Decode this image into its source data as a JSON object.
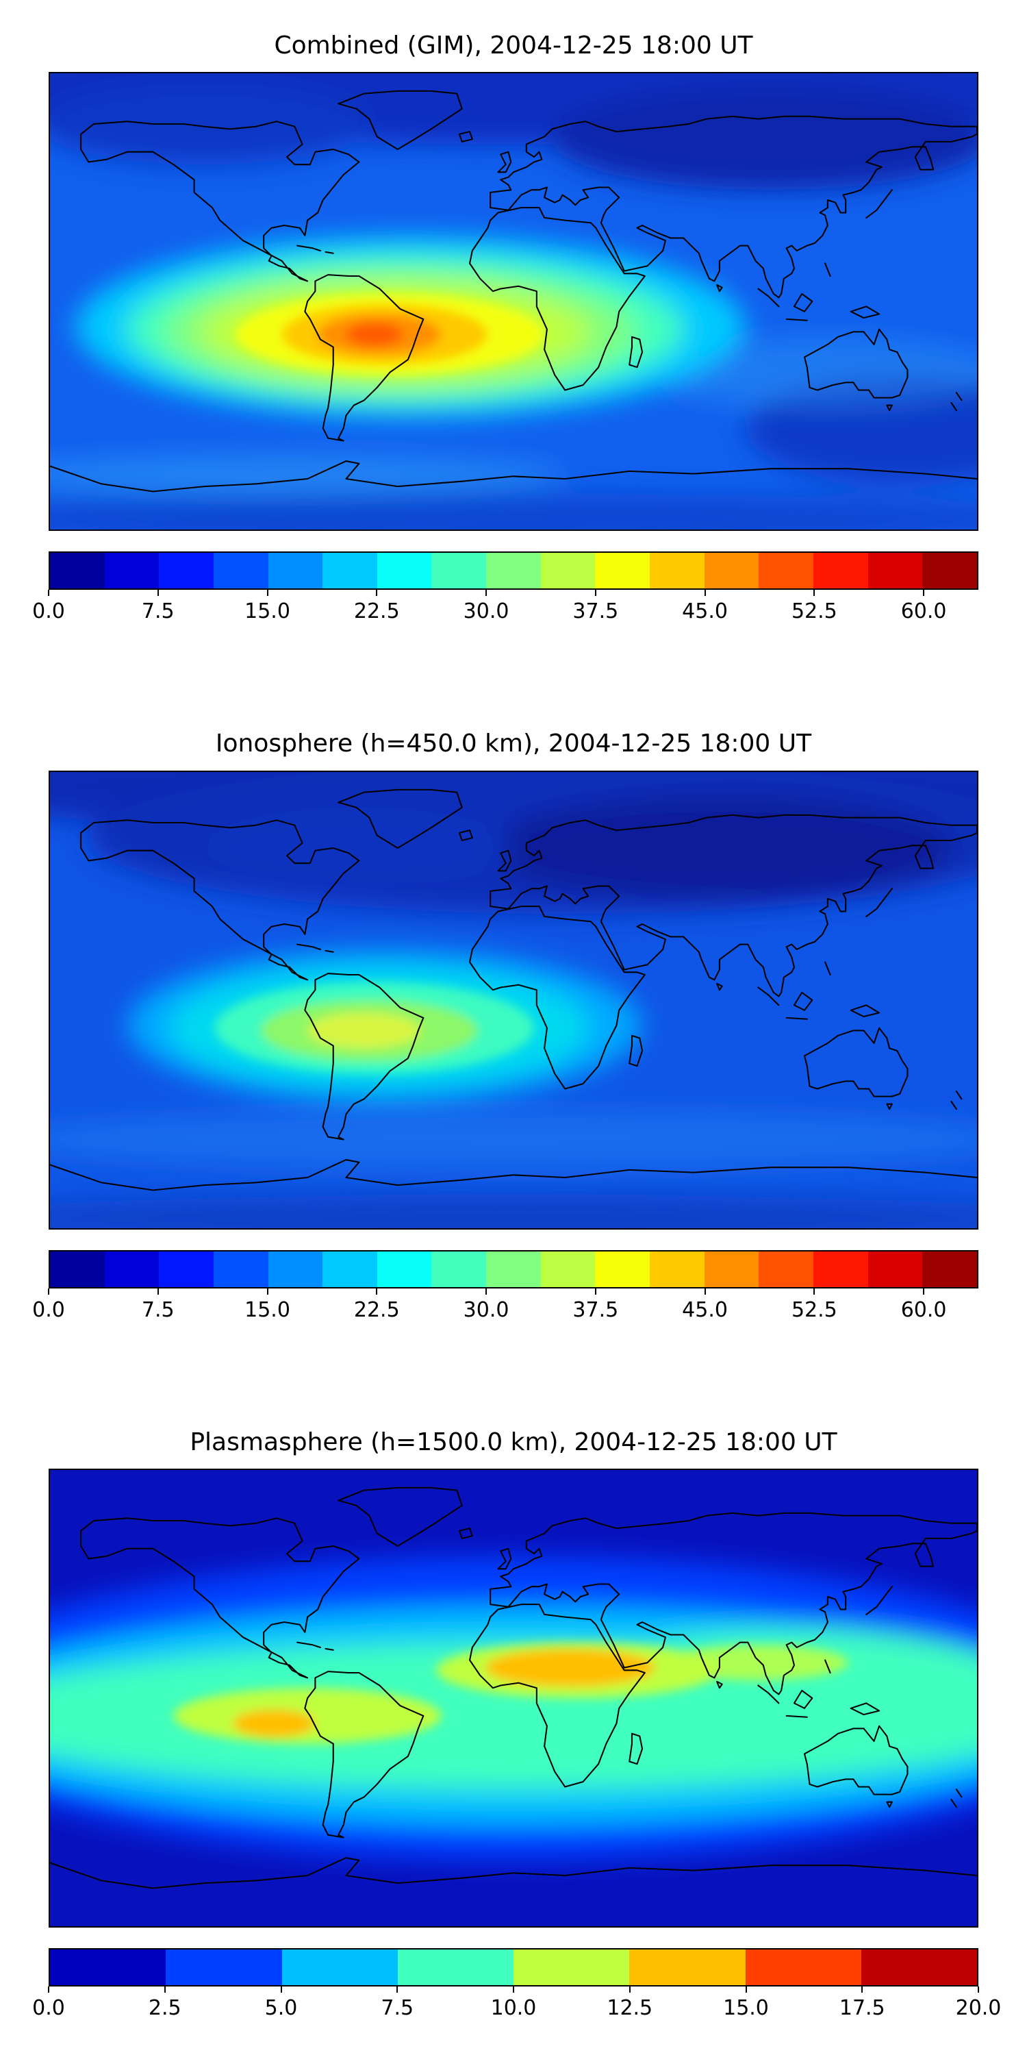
{
  "figure": {
    "background_color": "#ffffff",
    "coastline_color": "#000000",
    "description": "Three stacked global TEC maps (equirectangular projection) with jet colormap and horizontal colorbars"
  },
  "chart_data": [
    {
      "type": "heatmap",
      "title": "Combined (GIM), 2004-12-25 18:00 UT",
      "projection": "equirectangular",
      "extent": {
        "lon": [
          -180,
          180
        ],
        "lat": [
          -90,
          90
        ]
      },
      "colormap": "jet",
      "colorbar": {
        "min": 0,
        "max": 63.75,
        "tick_values": [
          0,
          7.5,
          15,
          22.5,
          30,
          37.5,
          45,
          52.5,
          60
        ],
        "tick_labels": [
          "0.0",
          "7.5",
          "15.0",
          "22.5",
          "30.0",
          "37.5",
          "45.0",
          "52.5",
          "60.0"
        ],
        "segment_colors": [
          "#00009e",
          "#0000d9",
          "#0017ff",
          "#0052ff",
          "#008fff",
          "#00c9ff",
          "#08fff7",
          "#42ffbd",
          "#80ff80",
          "#bdff42",
          "#f7ff08",
          "#ffc900",
          "#ff8f00",
          "#ff5200",
          "#ff1700",
          "#d90000",
          "#9e0000"
        ]
      },
      "features": [
        {
          "name": "equatorial-anomaly-peak",
          "lon": -54,
          "lat": -13,
          "approx_value": 50
        },
        {
          "name": "broad-yellow-enhancement",
          "lon_range": [
            -120,
            10
          ],
          "lat_range": [
            -30,
            3
          ],
          "approx_value": 38
        },
        {
          "name": "ocean-background",
          "approx_value": 13
        },
        {
          "name": "north-high-latitude-minimum",
          "lon_range": [
            60,
            150
          ],
          "lat_range": [
            45,
            80
          ],
          "approx_value": 6
        }
      ]
    },
    {
      "type": "heatmap",
      "title": "Ionosphere  (h=450.0 km), 2004-12-25 18:00 UT",
      "projection": "equirectangular",
      "extent": {
        "lon": [
          -180,
          180
        ],
        "lat": [
          -90,
          90
        ]
      },
      "colormap": "jet",
      "colorbar": {
        "min": 0,
        "max": 63.75,
        "tick_values": [
          0,
          7.5,
          15,
          22.5,
          30,
          37.5,
          45,
          52.5,
          60
        ],
        "tick_labels": [
          "0.0",
          "7.5",
          "15.0",
          "22.5",
          "30.0",
          "37.5",
          "45.0",
          "52.5",
          "60.0"
        ],
        "segment_colors": [
          "#00009e",
          "#0000d9",
          "#0017ff",
          "#0052ff",
          "#008fff",
          "#00c9ff",
          "#08fff7",
          "#42ffbd",
          "#80ff80",
          "#bdff42",
          "#f7ff08",
          "#ffc900",
          "#ff8f00",
          "#ff5200",
          "#ff1700",
          "#d90000",
          "#9e0000"
        ]
      },
      "features": [
        {
          "name": "equatorial-anomaly-peak",
          "lon": -58,
          "lat": -12,
          "approx_value": 36
        },
        {
          "name": "cyan-green-enhancement",
          "lon_range": [
            -105,
            -15
          ],
          "lat_range": [
            -32,
            5
          ],
          "approx_value": 25
        },
        {
          "name": "ocean-background",
          "approx_value": 10
        },
        {
          "name": "north-mid-high-latitude-minimum",
          "lon_range": [
            -30,
            160
          ],
          "lat_range": [
            35,
            80
          ],
          "approx_value": 4
        }
      ]
    },
    {
      "type": "heatmap",
      "title": "Plasmasphere (h=1500.0 km), 2004-12-25 18:00 UT",
      "projection": "equirectangular",
      "extent": {
        "lon": [
          -180,
          180
        ],
        "lat": [
          -90,
          90
        ]
      },
      "colormap": "jet",
      "colorbar": {
        "min": 0,
        "max": 20,
        "tick_values": [
          0,
          2.5,
          5,
          7.5,
          10,
          12.5,
          15,
          17.5,
          20
        ],
        "tick_labels": [
          "0.0",
          "2.5",
          "5.0",
          "7.5",
          "10.0",
          "12.5",
          "15.0",
          "17.5",
          "20.0"
        ],
        "segment_colors": [
          "#0000bf",
          "#0040ff",
          "#00bfff",
          "#40ffbf",
          "#bfff40",
          "#ffbf00",
          "#ff4000",
          "#bf0000"
        ]
      },
      "features": [
        {
          "name": "orange-maximum-africa",
          "lon_range": [
            -5,
            42
          ],
          "lat_range": [
            4,
            20
          ],
          "approx_value": 16
        },
        {
          "name": "orange-maximum-east-pacific",
          "lon": -93,
          "lat": -10,
          "approx_value": 15
        },
        {
          "name": "equatorial-green-band",
          "lat_range": [
            -25,
            25
          ],
          "approx_value": 9
        },
        {
          "name": "mid-latitude-blue-band",
          "approx_value": 4
        },
        {
          "name": "polar-minimum",
          "approx_value": 1.5
        }
      ]
    }
  ]
}
